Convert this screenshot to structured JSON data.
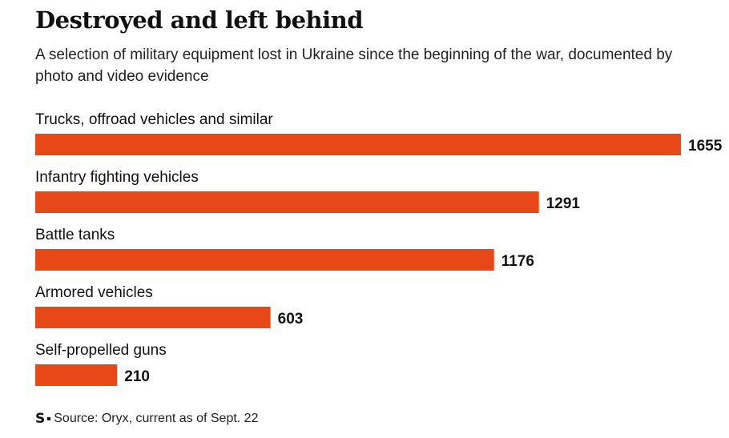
{
  "header": {
    "title": "Destroyed and left behind",
    "subtitle": "A selection of military equipment lost in Ukraine since the beginning of the war, documented by photo and video evidence"
  },
  "footer": {
    "logo": "S",
    "source": "Source: Oryx, current as of Sept. 22"
  },
  "colors": {
    "bar": "#e84817",
    "text": "#111111"
  },
  "chart_data": {
    "type": "bar",
    "orientation": "horizontal",
    "title": "Destroyed and left behind",
    "subtitle": "A selection of military equipment lost in Ukraine since the beginning of the war, documented by photo and video evidence",
    "categories": [
      "Trucks, offroad vehicles and similar",
      "Infantry fighting vehicles",
      "Battle tanks",
      "Armored vehicles",
      "Self-propelled guns"
    ],
    "values": [
      1655,
      1291,
      1176,
      603,
      210
    ],
    "data_labels": [
      "1655",
      "1291",
      "1176",
      "603",
      "210"
    ],
    "xlim": [
      0,
      1655
    ],
    "grid": false,
    "legend": "none"
  }
}
